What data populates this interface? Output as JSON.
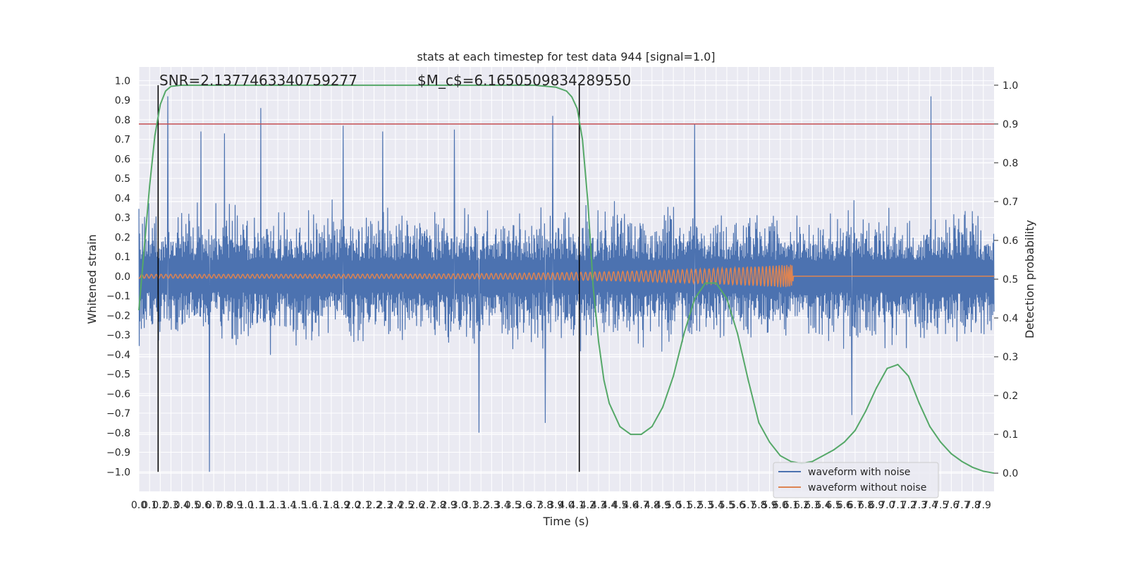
{
  "chart_data": {
    "type": "line",
    "title": "stats at each timestep for test data 944 [signal=1.0]",
    "xlabel": "Time (s)",
    "ylabel": "Whitened strain",
    "y2label": "Detection probability",
    "xlim": [
      0.0,
      8.0
    ],
    "ylim": [
      -1.1,
      1.07
    ],
    "y2lim": [
      -0.047,
      1.047
    ],
    "xticks": [
      0.0,
      0.1,
      0.2,
      0.3,
      0.4,
      0.5,
      0.6,
      0.7,
      0.8,
      0.9,
      1.0,
      1.1,
      1.2,
      1.3,
      1.4,
      1.5,
      1.6,
      1.7,
      1.8,
      1.9,
      2.0,
      2.1,
      2.2,
      2.3,
      2.4,
      2.5,
      2.6,
      2.7,
      2.8,
      2.9,
      3.0,
      3.1,
      3.2,
      3.3,
      3.4,
      3.5,
      3.6,
      3.7,
      3.8,
      3.9,
      4.0,
      4.1,
      4.2,
      4.3,
      4.4,
      4.5,
      4.6,
      4.7,
      4.8,
      4.9,
      5.0,
      5.1,
      5.2,
      5.3,
      5.4,
      5.5,
      5.6,
      5.7,
      5.8,
      5.9,
      6.0,
      6.1,
      6.2,
      6.3,
      6.4,
      6.5,
      6.6,
      6.7,
      6.8,
      6.9,
      7.0,
      7.1,
      7.2,
      7.3,
      7.4,
      7.5,
      7.6,
      7.7,
      7.8,
      7.9
    ],
    "xtick_labels": [
      "0.0",
      "0.1",
      "0.2",
      "0.3",
      "0.4",
      "0.5",
      "0.6",
      "0.7",
      "0.8",
      "0.9",
      "1.0",
      "1.1",
      "1.2",
      "1.3",
      "1.4",
      "1.5",
      "1.6",
      "1.7",
      "1.8",
      "1.9",
      "2.0",
      "2.1",
      "2.2",
      "2.3",
      "2.4",
      "2.5",
      "2.6",
      "2.7",
      "2.8",
      "2.9",
      "3.0",
      "3.1",
      "3.2",
      "3.3",
      "3.4",
      "3.5",
      "3.6",
      "3.7",
      "3.8",
      "3.9",
      "4.0",
      "4.1",
      "4.2",
      "4.3",
      "4.4",
      "4.5",
      "4.6",
      "4.7",
      "4.8",
      "4.9",
      "5.0",
      "5.1",
      "5.2",
      "5.3",
      "5.4",
      "5.5",
      "5.6",
      "5.7",
      "5.8",
      "5.9",
      "6.0",
      "6.1",
      "6.2",
      "6.3",
      "6.4",
      "6.5",
      "6.6",
      "6.7",
      "6.8",
      "6.9",
      "7.0",
      "7.1",
      "7.2",
      "7.3",
      "7.4",
      "7.5",
      "7.6",
      "7.7",
      "7.8",
      "7.9"
    ],
    "yticks": [
      -1.0,
      -0.9,
      -0.8,
      -0.7,
      -0.6,
      -0.5,
      -0.4,
      -0.3,
      -0.2,
      -0.1,
      0.0,
      0.1,
      0.2,
      0.3,
      0.4,
      0.5,
      0.6,
      0.7,
      0.8,
      0.9,
      1.0
    ],
    "ytick_labels": [
      "−1.0",
      "−0.9",
      "−0.8",
      "−0.7",
      "−0.6",
      "−0.5",
      "−0.4",
      "−0.3",
      "−0.2",
      "−0.1",
      "0.0",
      "0.1",
      "0.2",
      "0.3",
      "0.4",
      "0.5",
      "0.6",
      "0.7",
      "0.8",
      "0.9",
      "1.0"
    ],
    "y2ticks": [
      0.0,
      0.1,
      0.2,
      0.3,
      0.4,
      0.5,
      0.6,
      0.7,
      0.8,
      0.9,
      1.0
    ],
    "y2tick_labels": [
      "0.0",
      "0.1",
      "0.2",
      "0.3",
      "0.4",
      "0.5",
      "0.6",
      "0.7",
      "0.8",
      "0.9",
      "1.0"
    ],
    "grid": true,
    "legend_position": "lower-right",
    "annotations": [
      "SNR=2.1377463340759277",
      "$M_c$=6.1650509834289550"
    ],
    "series": [
      {
        "name": "waveform with noise",
        "color": "#4c72b0",
        "axis": "left",
        "description": "noisy whitened strain, envelope roughly ±0.4 with spikes; max ≈0.92 at t≈0.27 and t≈7.4, min ≈−1.0 at t≈0.66",
        "amplitude_typical": 0.35,
        "peaks": [
          [
            0.27,
            0.92
          ],
          [
            0.58,
            0.74
          ],
          [
            0.8,
            0.73
          ],
          [
            1.14,
            0.86
          ],
          [
            1.91,
            0.77
          ],
          [
            2.28,
            0.74
          ],
          [
            2.95,
            0.75
          ],
          [
            3.87,
            0.82
          ],
          [
            5.2,
            0.78
          ],
          [
            7.41,
            0.92
          ],
          [
            0.66,
            -1.0
          ],
          [
            3.18,
            -0.8
          ],
          [
            3.8,
            -0.75
          ],
          [
            6.67,
            -0.71
          ]
        ]
      },
      {
        "name": "waveform without noise",
        "color": "#dd8452",
        "axis": "left",
        "description": "chirp signal near zero, amplitude growing until merger at t≈6.1 then flat",
        "x_start": 0.0,
        "x_end_chirp": 6.12,
        "amp_start": 0.01,
        "amp_end": 0.06
      },
      {
        "name": "",
        "color": "#55a868",
        "axis": "right",
        "x": [
          0.0,
          0.05,
          0.1,
          0.15,
          0.2,
          0.25,
          0.3,
          0.4,
          1.0,
          2.0,
          3.0,
          3.7,
          3.9,
          4.0,
          4.05,
          4.1,
          4.15,
          4.2,
          4.25,
          4.3,
          4.35,
          4.4,
          4.5,
          4.6,
          4.7,
          4.8,
          4.9,
          5.0,
          5.1,
          5.2,
          5.3,
          5.4,
          5.5,
          5.6,
          5.7,
          5.8,
          5.9,
          6.0,
          6.1,
          6.2,
          6.3,
          6.4,
          6.5,
          6.6,
          6.7,
          6.8,
          6.9,
          7.0,
          7.1,
          7.2,
          7.3,
          7.4,
          7.5,
          7.6,
          7.7,
          7.8,
          7.9,
          8.0
        ],
        "values": [
          0.42,
          0.58,
          0.74,
          0.87,
          0.95,
          0.985,
          0.997,
          1.0,
          1.0,
          1.0,
          1.0,
          1.0,
          0.995,
          0.985,
          0.97,
          0.94,
          0.86,
          0.7,
          0.48,
          0.34,
          0.24,
          0.18,
          0.12,
          0.1,
          0.1,
          0.12,
          0.17,
          0.25,
          0.36,
          0.45,
          0.49,
          0.49,
          0.45,
          0.36,
          0.24,
          0.13,
          0.08,
          0.045,
          0.03,
          0.025,
          0.03,
          0.045,
          0.06,
          0.08,
          0.11,
          0.16,
          0.22,
          0.27,
          0.28,
          0.25,
          0.18,
          0.12,
          0.08,
          0.05,
          0.03,
          0.015,
          0.005,
          0.0
        ]
      }
    ],
    "threshold_line": {
      "value": 0.9,
      "axis": "right",
      "color": "#c44e52"
    },
    "vertical_lines": [
      {
        "x": 0.18,
        "color": "#000000"
      },
      {
        "x": 4.12,
        "color": "#000000"
      }
    ],
    "colors": {
      "background": "#eaeaf2",
      "grid": "#ffffff"
    }
  }
}
